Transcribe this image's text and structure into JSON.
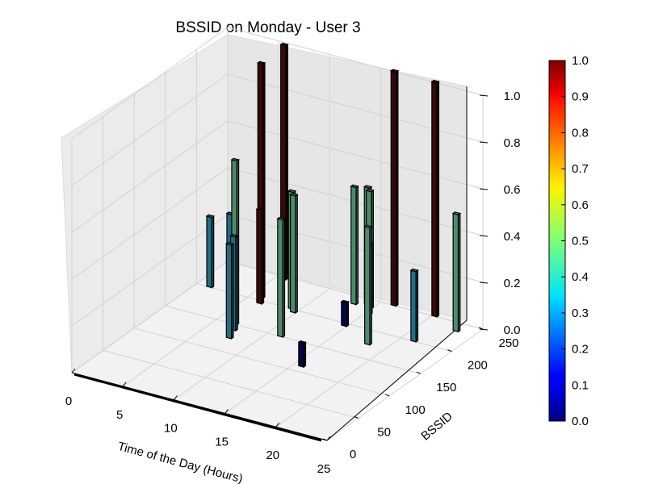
{
  "chart_data": {
    "type": "bar3d",
    "title": "BSSID on Monday - User 3",
    "xlabel": "Time of the Day (Hours)",
    "ylabel": "BSSID",
    "zlabel": "",
    "xlim": [
      0,
      25
    ],
    "ylim": [
      0,
      250
    ],
    "zlim": [
      0,
      1.0
    ],
    "x_ticks": [
      "0",
      "5",
      "10",
      "15",
      "20",
      "25"
    ],
    "y_ticks": [
      "0",
      "50",
      "100",
      "150",
      "200",
      "250"
    ],
    "z_ticks": [
      "0.0",
      "0.2",
      "0.4",
      "0.6",
      "0.8",
      "1.0"
    ],
    "colorbar": {
      "colormap": "jet",
      "range": [
        0,
        1.0
      ],
      "ticks": [
        "0.0",
        "0.1",
        "0.2",
        "0.3",
        "0.4",
        "0.5",
        "0.6",
        "0.7",
        "0.8",
        "0.9",
        "1.0"
      ]
    },
    "grid": true,
    "bars": [
      {
        "x": 1.0,
        "y": 200,
        "z": 0.3,
        "color_value": 0.32
      },
      {
        "x": 4.5,
        "y": 175,
        "z": 0.4,
        "color_value": 0.32
      },
      {
        "x": 5.5,
        "y": 245,
        "z": 1.0,
        "color_value": 1.0
      },
      {
        "x": 5.7,
        "y": 205,
        "z": 1.0,
        "color_value": 1.0
      },
      {
        "x": 6.2,
        "y": 195,
        "z": 0.4,
        "color_value": 1.0
      },
      {
        "x": 6.5,
        "y": 150,
        "z": 0.7,
        "color_value": 0.45
      },
      {
        "x": 7.0,
        "y": 140,
        "z": 0.4,
        "color_value": 0.32
      },
      {
        "x": 7.5,
        "y": 125,
        "z": 0.4,
        "color_value": 0.32
      },
      {
        "x": 9.0,
        "y": 200,
        "z": 0.5,
        "color_value": 0.45
      },
      {
        "x": 9.5,
        "y": 195,
        "z": 0.5,
        "color_value": 0.45
      },
      {
        "x": 11.0,
        "y": 150,
        "z": 0.5,
        "color_value": 0.45
      },
      {
        "x": 13.0,
        "y": 235,
        "z": 0.5,
        "color_value": 0.45
      },
      {
        "x": 14.0,
        "y": 240,
        "z": 0.5,
        "color_value": 0.45
      },
      {
        "x": 14.5,
        "y": 235,
        "z": 0.5,
        "color_value": 0.45
      },
      {
        "x": 15.0,
        "y": 225,
        "z": 0.3,
        "color_value": 0.32
      },
      {
        "x": 14.5,
        "y": 195,
        "z": 0.1,
        "color_value": 0.05
      },
      {
        "x": 15.5,
        "y": 110,
        "z": 0.1,
        "color_value": 0.05
      },
      {
        "x": 16.0,
        "y": 250,
        "z": 1.0,
        "color_value": 1.0
      },
      {
        "x": 18.0,
        "y": 175,
        "z": 0.5,
        "color_value": 0.45
      },
      {
        "x": 20.0,
        "y": 250,
        "z": 1.0,
        "color_value": 1.0
      },
      {
        "x": 21.0,
        "y": 200,
        "z": 0.3,
        "color_value": 0.32
      },
      {
        "x": 23.0,
        "y": 235,
        "z": 0.5,
        "color_value": 0.45
      }
    ]
  }
}
